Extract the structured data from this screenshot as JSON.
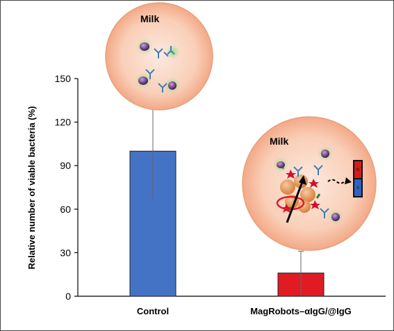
{
  "chart_data": {
    "type": "bar",
    "categories": [
      "Control",
      "MagRobots–αIgG/@IgG"
    ],
    "values": [
      100,
      16
    ],
    "error": [
      33,
      15
    ],
    "colors": [
      "#4472c4",
      "#e01b24"
    ],
    "ylabel": "Relative number of viable bacteria (%)",
    "xlabel": "",
    "ylim": [
      0,
      150
    ],
    "yticks": [
      0,
      30,
      60,
      90,
      120,
      150
    ],
    "grid": false
  },
  "insets": {
    "control": {
      "title": "Milk",
      "scene": "bacteria-in-milk"
    },
    "treated": {
      "title": "Milk",
      "scene": "magrobots-capturing-bacteria",
      "magnet": {
        "north": "N",
        "south": "S"
      }
    }
  }
}
